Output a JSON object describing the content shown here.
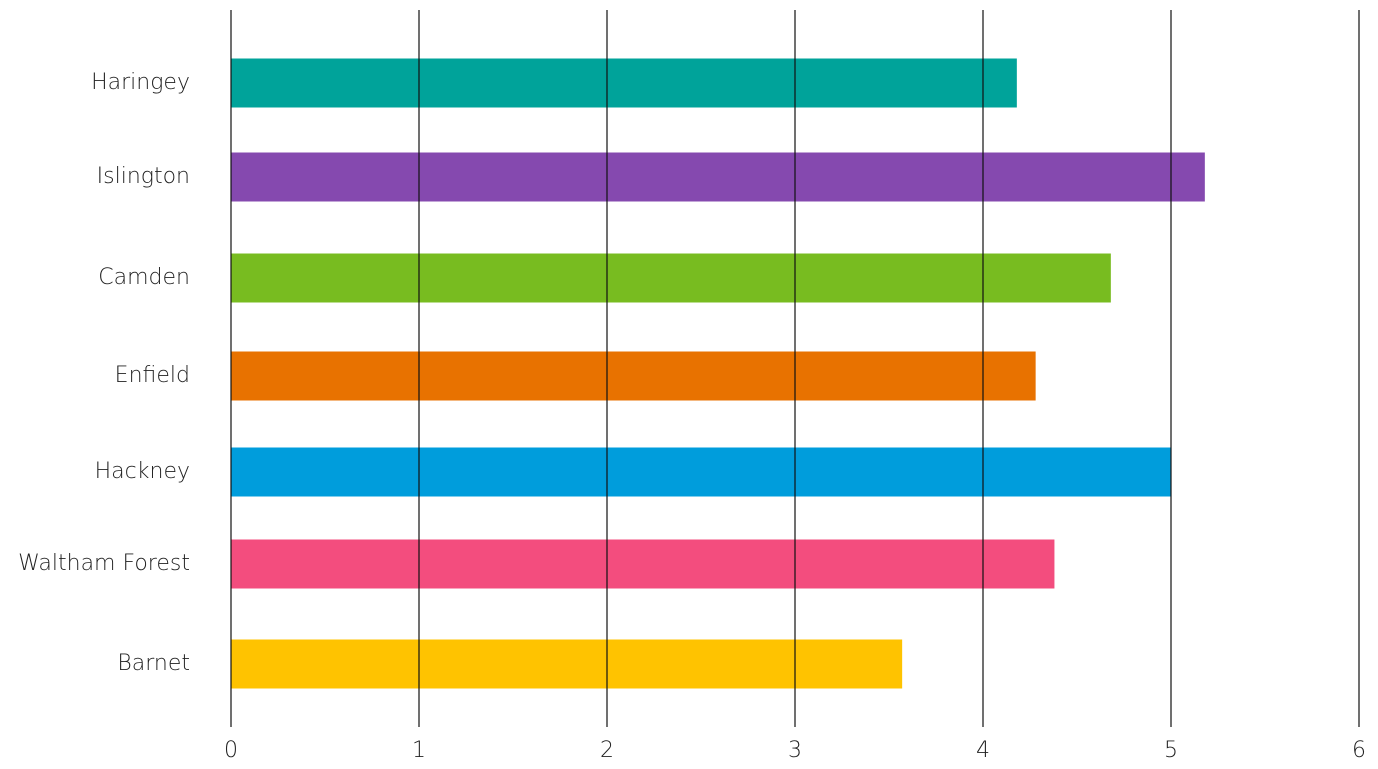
{
  "chart_data": {
    "type": "bar",
    "orientation": "horizontal",
    "title": "",
    "xlabel": "",
    "ylabel": "",
    "categories": [
      "Haringey",
      "Islington",
      "Camden",
      "Enfield",
      "Hackney",
      "Waltham Forest",
      "Barnet"
    ],
    "values": [
      4.18,
      5.18,
      4.68,
      4.28,
      5.0,
      4.38,
      3.57
    ],
    "colors": [
      "#00A39A",
      "#8549AF",
      "#78BC20",
      "#E87200",
      "#009DDC",
      "#F34D7E",
      "#FFC300"
    ],
    "xlim": [
      0,
      6
    ],
    "xticks": [
      "0",
      "1",
      "2",
      "3",
      "4",
      "5",
      "6"
    ],
    "grid": true,
    "legend": "none"
  }
}
